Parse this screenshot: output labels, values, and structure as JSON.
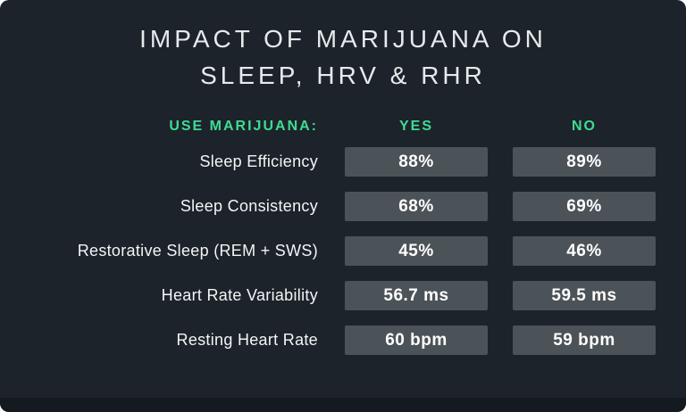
{
  "title": {
    "line1": "IMPACT OF MARIJUANA ON",
    "line2": "SLEEP, HRV & RHR"
  },
  "table": {
    "header": {
      "label": "USE MARIJUANA:",
      "col_yes": "YES",
      "col_no": "NO"
    },
    "rows": [
      {
        "label": "Sleep Efficiency",
        "yes": "88%",
        "no": "89%"
      },
      {
        "label": "Sleep Consistency",
        "yes": "68%",
        "no": "69%"
      },
      {
        "label": "Restorative Sleep (REM + SWS)",
        "yes": "45%",
        "no": "46%"
      },
      {
        "label": "Heart Rate Variability",
        "yes": "56.7 ms",
        "no": "59.5 ms"
      },
      {
        "label": "Resting Heart Rate",
        "yes": "60 bpm",
        "no": "59 bpm"
      }
    ]
  },
  "colors": {
    "background": "#1c232a",
    "accent_green": "#3edc92",
    "value_box": "#4c5358",
    "text": "#f3f5f6"
  },
  "chart_data": {
    "type": "table",
    "title": "IMPACT OF MARIJUANA ON SLEEP, HRV & RHR",
    "columns": [
      "USE MARIJUANA:",
      "YES",
      "NO"
    ],
    "rows": [
      [
        "Sleep Efficiency",
        "88%",
        "89%"
      ],
      [
        "Sleep Consistency",
        "68%",
        "69%"
      ],
      [
        "Restorative Sleep (REM + SWS)",
        "45%",
        "46%"
      ],
      [
        "Heart Rate Variability",
        "56.7 ms",
        "59.5 ms"
      ],
      [
        "Resting Heart Rate",
        "60 bpm",
        "59 bpm"
      ]
    ],
    "series": [
      {
        "name": "YES",
        "values": [
          88,
          68,
          45,
          56.7,
          60
        ]
      },
      {
        "name": "NO",
        "values": [
          89,
          69,
          46,
          59.5,
          59
        ]
      }
    ],
    "categories": [
      "Sleep Efficiency",
      "Sleep Consistency",
      "Restorative Sleep (REM + SWS)",
      "Heart Rate Variability",
      "Resting Heart Rate"
    ],
    "units": [
      "%",
      "%",
      "%",
      "ms",
      "bpm"
    ],
    "legend_position": "top",
    "grid": false
  }
}
